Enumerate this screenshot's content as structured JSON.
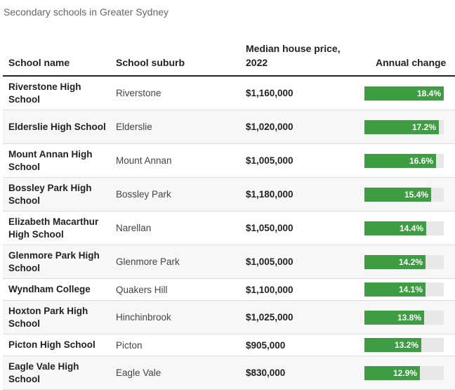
{
  "subtitle": "Secondary schools in Greater Sydney",
  "headers": {
    "school_name": "School name",
    "school_suburb": "School suburb",
    "median_price": "Median house price, 2022",
    "annual_change": "Annual change"
  },
  "colors": {
    "bar": "#3e9c42",
    "track": "#e8e8e8"
  },
  "chart_data": {
    "type": "table",
    "columns": [
      "School name",
      "School suburb",
      "Median house price, 2022",
      "Annual change"
    ],
    "bar_max": 18.4,
    "rows": [
      {
        "name": "Riverstone High School",
        "suburb": "Riverstone",
        "price": "$1,160,000",
        "change": 18.4,
        "change_label": "18.4%"
      },
      {
        "name": "Elderslie High School",
        "suburb": "Elderslie",
        "price": "$1,020,000",
        "change": 17.2,
        "change_label": "17.2%"
      },
      {
        "name": "Mount Annan High School",
        "suburb": "Mount Annan",
        "price": "$1,005,000",
        "change": 16.6,
        "change_label": "16.6%"
      },
      {
        "name": "Bossley Park High School",
        "suburb": "Bossley Park",
        "price": "$1,180,000",
        "change": 15.4,
        "change_label": "15.4%"
      },
      {
        "name": "Elizabeth Macarthur High School",
        "suburb": "Narellan",
        "price": "$1,050,000",
        "change": 14.4,
        "change_label": "14.4%"
      },
      {
        "name": "Glenmore Park High School",
        "suburb": "Glenmore Park",
        "price": "$1,005,000",
        "change": 14.2,
        "change_label": "14.2%"
      },
      {
        "name": "Wyndham College",
        "suburb": "Quakers Hill",
        "price": "$1,100,000",
        "change": 14.1,
        "change_label": "14.1%"
      },
      {
        "name": "Hoxton Park High School",
        "suburb": "Hinchinbrook",
        "price": "$1,025,000",
        "change": 13.8,
        "change_label": "13.8%"
      },
      {
        "name": "Picton High School",
        "suburb": "Picton",
        "price": "$905,000",
        "change": 13.2,
        "change_label": "13.2%"
      },
      {
        "name": "Eagle Vale High School",
        "suburb": "Eagle Vale",
        "price": "$830,000",
        "change": 12.9,
        "change_label": "12.9%"
      }
    ]
  }
}
